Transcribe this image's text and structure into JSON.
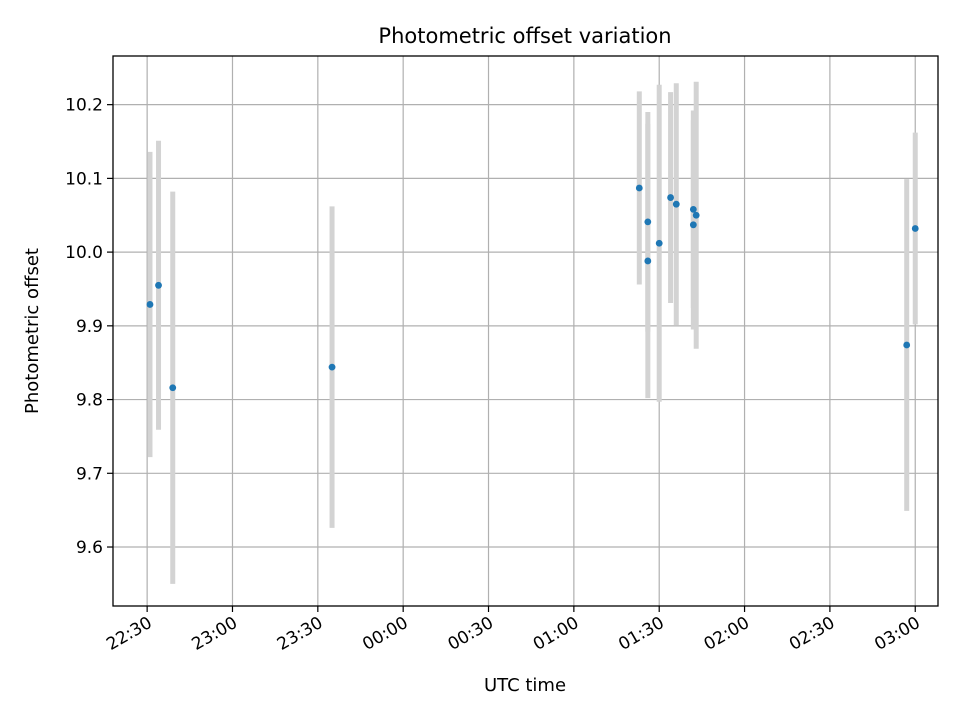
{
  "chart_data": {
    "type": "scatter",
    "title": "Photometric offset variation",
    "xlabel": "UTC time",
    "ylabel": "Photometric offset",
    "x_axis_type": "time",
    "xlim": [
      "22:18",
      "03:08"
    ],
    "ylim": [
      9.52,
      10.266
    ],
    "x_ticks": [
      "22:30",
      "23:00",
      "23:30",
      "00:00",
      "00:30",
      "01:00",
      "01:30",
      "02:00",
      "02:30",
      "03:00"
    ],
    "y_ticks": [
      9.6,
      9.7,
      9.8,
      9.9,
      10.0,
      10.1,
      10.2
    ],
    "y_tick_labels": [
      "9.6",
      "9.7",
      "9.8",
      "9.9",
      "10.0",
      "10.1",
      "10.2"
    ],
    "grid": true,
    "colors": {
      "point": "#1f77b4",
      "errorbar": "#d3d3d3",
      "grid": "#b0b0b0",
      "axes": "#000000"
    },
    "points": [
      {
        "x": "22:31",
        "y": 9.929,
        "err": 0.207
      },
      {
        "x": "22:34",
        "y": 9.955,
        "err": 0.196
      },
      {
        "x": "22:39",
        "y": 9.816,
        "err": 0.266
      },
      {
        "x": "23:35",
        "y": 9.844,
        "err": 0.218
      },
      {
        "x": "01:23",
        "y": 10.087,
        "err": 0.131
      },
      {
        "x": "01:26",
        "y": 9.988,
        "err": 0.186
      },
      {
        "x": "01:26",
        "y": 10.041,
        "err": 0.149
      },
      {
        "x": "01:30",
        "y": 10.012,
        "err": 0.215
      },
      {
        "x": "01:34",
        "y": 10.074,
        "err": 0.143
      },
      {
        "x": "01:36",
        "y": 10.065,
        "err": 0.164
      },
      {
        "x": "01:42",
        "y": 10.058,
        "err": 0.134
      },
      {
        "x": "01:42",
        "y": 10.037,
        "err": 0.142
      },
      {
        "x": "01:43",
        "y": 10.05,
        "err": 0.181
      },
      {
        "x": "02:57",
        "y": 9.874,
        "err": 0.225
      },
      {
        "x": "03:00",
        "y": 10.032,
        "err": 0.13
      }
    ]
  }
}
